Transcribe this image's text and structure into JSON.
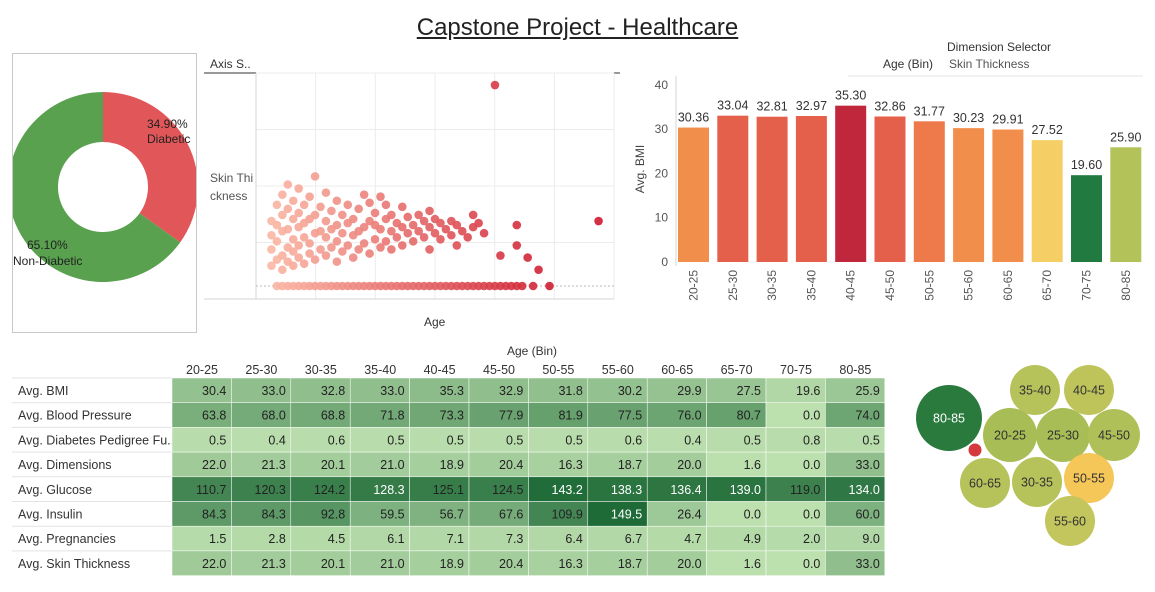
{
  "title": "Capstone Project - Healthcare",
  "colors": {
    "donut_green": "#59a14f",
    "donut_red": "#e15759",
    "bar_orange": "#f28e4b",
    "bar_redorange": "#e5604a",
    "bar_crimson": "#c0273d",
    "bar_yellow": "#f5cf66",
    "bar_darkgreen": "#217a3f",
    "bar_olive": "#b3c35a",
    "scatter_light": "#fbb8a5",
    "scatter_dark": "#cf1f33",
    "heat_min": "#c5e6b5",
    "heat_max": "#1e6b37",
    "bubble_dark": "#2a7a3e",
    "bubble_olive": "#b6c25a",
    "bubble_yellow": "#f5c658",
    "dot_red": "#d6393d"
  },
  "chart_data": [
    {
      "type": "pie",
      "donut": true,
      "slices": [
        {
          "label": "Diabetic",
          "pct_label": "34.90%",
          "value": 34.9
        },
        {
          "label": "Non-Diabetic",
          "pct_label": "65.10%",
          "value": 65.1
        }
      ]
    },
    {
      "type": "scatter",
      "title": "Axis S..",
      "xlabel": "Age",
      "ylabel": "Skin Thi ckness",
      "xlim": [
        20,
        82
      ],
      "ylim": [
        -2,
        100
      ],
      "points": [
        [
          22,
          0
        ],
        [
          23,
          0
        ],
        [
          24,
          0
        ],
        [
          25,
          0
        ],
        [
          26,
          0
        ],
        [
          27,
          0
        ],
        [
          28,
          0
        ],
        [
          29,
          0
        ],
        [
          30,
          0
        ],
        [
          31,
          0
        ],
        [
          32,
          0
        ],
        [
          33,
          0
        ],
        [
          34,
          0
        ],
        [
          35,
          0
        ],
        [
          36,
          0
        ],
        [
          37,
          0
        ],
        [
          38,
          0
        ],
        [
          39,
          0
        ],
        [
          40,
          0
        ],
        [
          41,
          0
        ],
        [
          42,
          0
        ],
        [
          43,
          0
        ],
        [
          44,
          0
        ],
        [
          45,
          0
        ],
        [
          46,
          0
        ],
        [
          47,
          0
        ],
        [
          48,
          0
        ],
        [
          49,
          0
        ],
        [
          50,
          0
        ],
        [
          51,
          0
        ],
        [
          52,
          0
        ],
        [
          53,
          0
        ],
        [
          54,
          0
        ],
        [
          55,
          0
        ],
        [
          56,
          0
        ],
        [
          57,
          0
        ],
        [
          58,
          0
        ],
        [
          59,
          0
        ],
        [
          60,
          0
        ],
        [
          61,
          0
        ],
        [
          62,
          0
        ],
        [
          63,
          0
        ],
        [
          64,
          0
        ],
        [
          65,
          0
        ],
        [
          66,
          0
        ],
        [
          67,
          0
        ],
        [
          69,
          0
        ],
        [
          72,
          0
        ],
        [
          21,
          10
        ],
        [
          21,
          18
        ],
        [
          21,
          25
        ],
        [
          21,
          32
        ],
        [
          22,
          13
        ],
        [
          22,
          22
        ],
        [
          22,
          30
        ],
        [
          22,
          40
        ],
        [
          23,
          8
        ],
        [
          23,
          15
        ],
        [
          23,
          27
        ],
        [
          23,
          35
        ],
        [
          23,
          45
        ],
        [
          24,
          12
        ],
        [
          24,
          19
        ],
        [
          24,
          28
        ],
        [
          24,
          38
        ],
        [
          24,
          50
        ],
        [
          25,
          10
        ],
        [
          25,
          17
        ],
        [
          25,
          23
        ],
        [
          25,
          33
        ],
        [
          25,
          42
        ],
        [
          26,
          14
        ],
        [
          26,
          20
        ],
        [
          26,
          29
        ],
        [
          26,
          36
        ],
        [
          26,
          48
        ],
        [
          27,
          11
        ],
        [
          27,
          24
        ],
        [
          27,
          31
        ],
        [
          27,
          40
        ],
        [
          28,
          16
        ],
        [
          28,
          21
        ],
        [
          28,
          33
        ],
        [
          28,
          44
        ],
        [
          29,
          13
        ],
        [
          29,
          26
        ],
        [
          29,
          35
        ],
        [
          29,
          54
        ],
        [
          30,
          18
        ],
        [
          30,
          27
        ],
        [
          30,
          39
        ],
        [
          31,
          15
        ],
        [
          31,
          24
        ],
        [
          31,
          32
        ],
        [
          31,
          46
        ],
        [
          32,
          19
        ],
        [
          32,
          28
        ],
        [
          32,
          37
        ],
        [
          33,
          12
        ],
        [
          33,
          22
        ],
        [
          33,
          30
        ],
        [
          33,
          42
        ],
        [
          34,
          17
        ],
        [
          34,
          26
        ],
        [
          34,
          35
        ],
        [
          35,
          20
        ],
        [
          35,
          31
        ],
        [
          35,
          40
        ],
        [
          36,
          14
        ],
        [
          36,
          25
        ],
        [
          36,
          33
        ],
        [
          37,
          18
        ],
        [
          37,
          27
        ],
        [
          37,
          38
        ],
        [
          38,
          21
        ],
        [
          38,
          29
        ],
        [
          38,
          45
        ],
        [
          39,
          16
        ],
        [
          39,
          32
        ],
        [
          39,
          41
        ],
        [
          40,
          23
        ],
        [
          40,
          30
        ],
        [
          40,
          36
        ],
        [
          41,
          19
        ],
        [
          41,
          28
        ],
        [
          41,
          44
        ],
        [
          42,
          22
        ],
        [
          42,
          33
        ],
        [
          42,
          40
        ],
        [
          43,
          18
        ],
        [
          43,
          27
        ],
        [
          43,
          35
        ],
        [
          44,
          24
        ],
        [
          44,
          31
        ],
        [
          45,
          20
        ],
        [
          45,
          29
        ],
        [
          45,
          39
        ],
        [
          46,
          26
        ],
        [
          46,
          34
        ],
        [
          47,
          22
        ],
        [
          47,
          30
        ],
        [
          48,
          27
        ],
        [
          48,
          35
        ],
        [
          49,
          24
        ],
        [
          49,
          32
        ],
        [
          50,
          18
        ],
        [
          50,
          29
        ],
        [
          50,
          37
        ],
        [
          51,
          26
        ],
        [
          51,
          33
        ],
        [
          52,
          23
        ],
        [
          52,
          31
        ],
        [
          53,
          28
        ],
        [
          54,
          25
        ],
        [
          54,
          32
        ],
        [
          55,
          20
        ],
        [
          55,
          30
        ],
        [
          56,
          27
        ],
        [
          57,
          24
        ],
        [
          58,
          29
        ],
        [
          58,
          35
        ],
        [
          59,
          31
        ],
        [
          60,
          26
        ],
        [
          63,
          15
        ],
        [
          66,
          30
        ],
        [
          81,
          32
        ],
        [
          62,
          99
        ],
        [
          68,
          14
        ],
        [
          70,
          8
        ],
        [
          66,
          20
        ]
      ]
    },
    {
      "type": "bar",
      "title": "",
      "xlabel": "Age (Bin)",
      "ylabel": "Avg. BMI",
      "ylim": [
        0,
        42
      ],
      "yticks": [
        0,
        10,
        20,
        30,
        40
      ],
      "categories": [
        "20-25",
        "25-30",
        "30-35",
        "35-40",
        "40-45",
        "45-50",
        "50-55",
        "55-60",
        "60-65",
        "65-70",
        "70-75",
        "80-85"
      ],
      "values": [
        30.36,
        33.04,
        32.81,
        32.97,
        35.3,
        32.86,
        31.77,
        30.23,
        29.91,
        27.52,
        19.6,
        25.9
      ],
      "labels": [
        "30.36",
        "33.04",
        "32.81",
        "32.97",
        "35.30",
        "32.86",
        "31.77",
        "30.23",
        "29.91",
        "27.52",
        "19.60",
        "25.90"
      ],
      "bar_colors": [
        "#f28e4b",
        "#e5604a",
        "#e5604a",
        "#e5604a",
        "#c0273d",
        "#e5604a",
        "#ee7a4b",
        "#f28e4b",
        "#f28e4b",
        "#f5cf66",
        "#217a3f",
        "#b3c35a"
      ]
    },
    {
      "type": "heatmap",
      "column_header": "Age (Bin)",
      "columns": [
        "20-25",
        "25-30",
        "30-35",
        "35-40",
        "40-45",
        "45-50",
        "50-55",
        "55-60",
        "60-65",
        "65-70",
        "70-75",
        "80-85"
      ],
      "rows": [
        {
          "label": "Avg. BMI",
          "values": [
            "30.4",
            "33.0",
            "32.8",
            "33.0",
            "35.3",
            "32.9",
            "31.8",
            "30.2",
            "29.9",
            "27.5",
            "19.6",
            "25.9"
          ],
          "shade": [
            0.3,
            0.32,
            0.32,
            0.32,
            0.34,
            0.32,
            0.31,
            0.3,
            0.29,
            0.27,
            0.12,
            0.25
          ]
        },
        {
          "label": "Avg. Blood Pressure",
          "values": [
            "63.8",
            "68.0",
            "68.8",
            "71.8",
            "73.3",
            "77.9",
            "81.9",
            "77.5",
            "76.0",
            "80.7",
            "0.0",
            "74.0"
          ],
          "shade": [
            0.45,
            0.48,
            0.49,
            0.5,
            0.51,
            0.55,
            0.57,
            0.55,
            0.53,
            0.56,
            0.05,
            0.52
          ]
        },
        {
          "label": "Avg. Diabetes Pedigree Fu..",
          "values": [
            "0.5",
            "0.4",
            "0.6",
            "0.5",
            "0.5",
            "0.5",
            "0.5",
            "0.6",
            "0.4",
            "0.5",
            "0.8",
            "0.5"
          ],
          "shade": [
            0.08,
            0.07,
            0.08,
            0.08,
            0.08,
            0.08,
            0.08,
            0.08,
            0.07,
            0.08,
            0.08,
            0.08
          ]
        },
        {
          "label": "Avg. Dimensions",
          "values": [
            "22.0",
            "21.3",
            "20.1",
            "21.0",
            "18.9",
            "20.4",
            "16.3",
            "18.7",
            "20.0",
            "1.6",
            "0.0",
            "33.0"
          ],
          "shade": [
            0.22,
            0.21,
            0.2,
            0.21,
            0.19,
            0.2,
            0.17,
            0.19,
            0.2,
            0.06,
            0.05,
            0.32
          ]
        },
        {
          "label": "Avg. Glucose",
          "values": [
            "110.7",
            "120.3",
            "124.2",
            "128.3",
            "125.1",
            "124.5",
            "143.2",
            "138.3",
            "136.4",
            "139.0",
            "119.0",
            "134.0"
          ],
          "shade": [
            0.78,
            0.82,
            0.84,
            0.87,
            0.85,
            0.84,
            0.98,
            0.93,
            0.91,
            0.93,
            0.82,
            0.9
          ]
        },
        {
          "label": "Avg. Insulin",
          "values": [
            "84.3",
            "84.3",
            "92.8",
            "59.5",
            "56.7",
            "67.6",
            "109.9",
            "149.5",
            "26.4",
            "0.0",
            "0.0",
            "60.0"
          ],
          "shade": [
            0.62,
            0.62,
            0.66,
            0.43,
            0.42,
            0.48,
            0.78,
            1.0,
            0.24,
            0.05,
            0.05,
            0.43
          ]
        },
        {
          "label": "Avg. Pregnancies",
          "values": [
            "1.5",
            "2.8",
            "4.5",
            "6.1",
            "7.1",
            "7.3",
            "6.4",
            "6.7",
            "4.7",
            "4.9",
            "2.0",
            "9.0"
          ],
          "shade": [
            0.09,
            0.1,
            0.1,
            0.11,
            0.11,
            0.11,
            0.11,
            0.11,
            0.1,
            0.1,
            0.09,
            0.12
          ]
        },
        {
          "label": "Avg. Skin Thickness",
          "values": [
            "22.0",
            "21.3",
            "20.1",
            "21.0",
            "18.9",
            "20.4",
            "16.3",
            "18.7",
            "20.0",
            "1.6",
            "0.0",
            "33.0"
          ],
          "shade": [
            0.22,
            0.21,
            0.2,
            0.21,
            0.19,
            0.2,
            0.17,
            0.19,
            0.2,
            0.06,
            0.05,
            0.32
          ]
        }
      ]
    }
  ],
  "dimension_selector": {
    "label": "Dimension Selector",
    "value": "Skin Thickness"
  },
  "bubbles": [
    {
      "label": "80-85",
      "color": "#2a7a3e",
      "text": "#ffffff"
    },
    {
      "label": "35-40",
      "color": "#b6c25a",
      "text": "#333333"
    },
    {
      "label": "40-45",
      "color": "#bfc45a",
      "text": "#333333"
    },
    {
      "label": "20-25",
      "color": "#a8bd55",
      "text": "#333333"
    },
    {
      "label": "25-30",
      "color": "#a8bd55",
      "text": "#333333"
    },
    {
      "label": "45-50",
      "color": "#b0c058",
      "text": "#333333"
    },
    {
      "label": "60-65",
      "color": "#b6c25a",
      "text": "#333333"
    },
    {
      "label": "30-35",
      "color": "#b6c25a",
      "text": "#333333"
    },
    {
      "label": "50-55",
      "color": "#f5c658",
      "text": "#333333"
    },
    {
      "label": "55-60",
      "color": "#c3c55d",
      "text": "#333333"
    }
  ]
}
